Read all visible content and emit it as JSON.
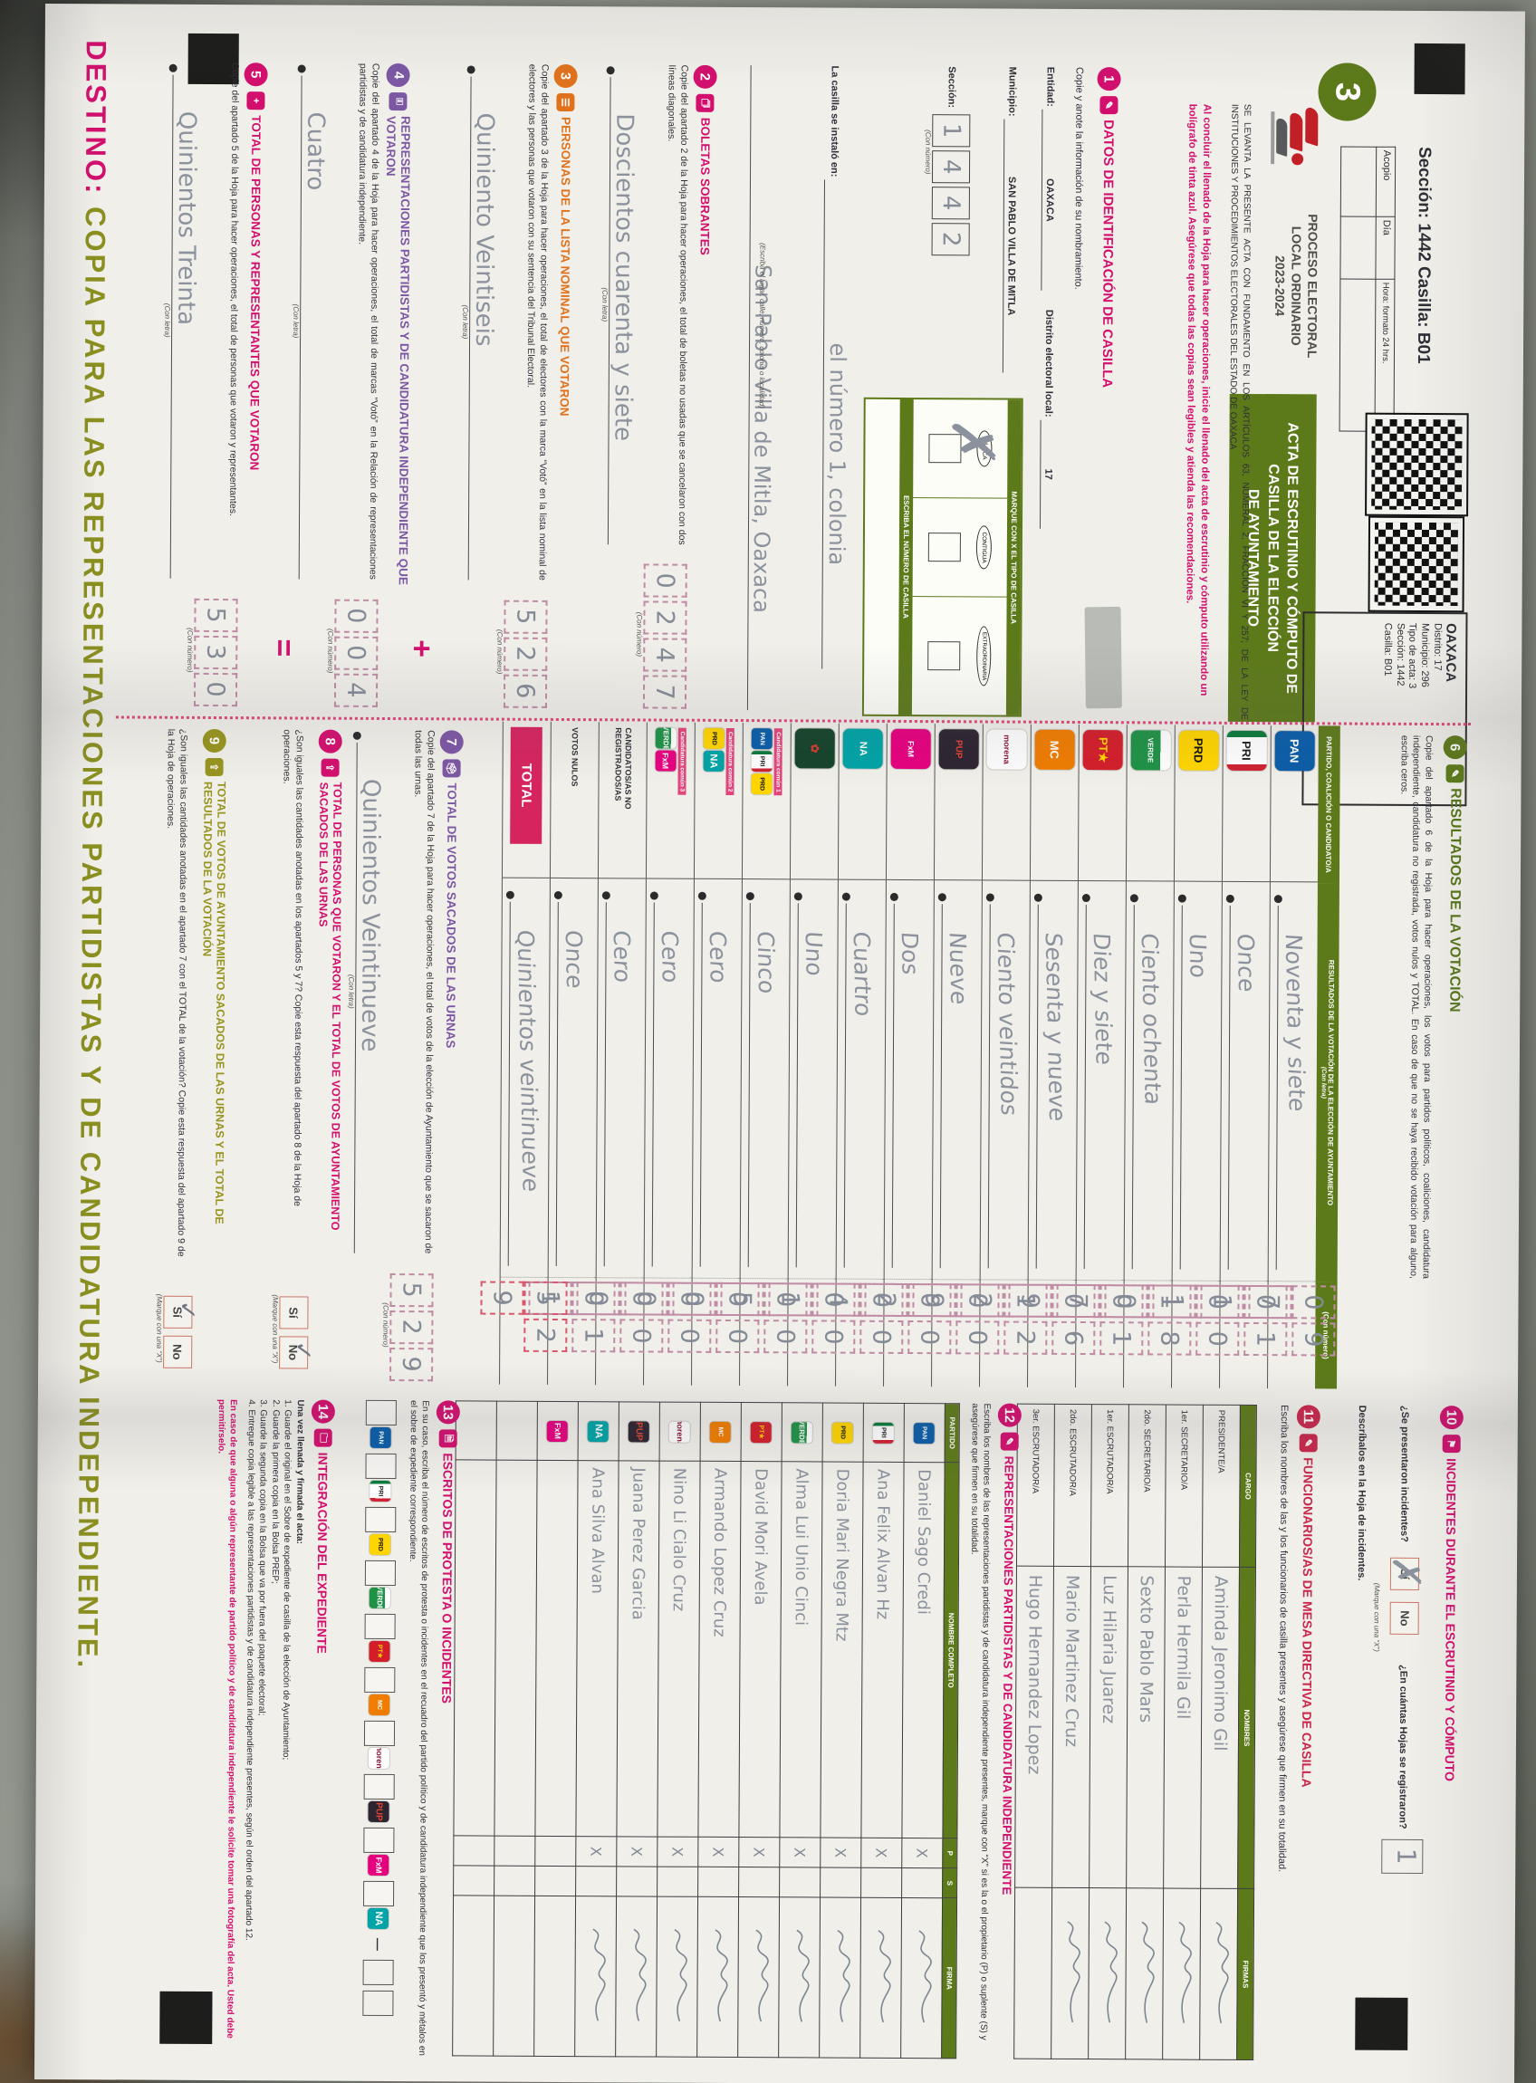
{
  "photo_background": "#8b8e86",
  "accents": {
    "green": "#5d7a1a",
    "pink": "#d30f6e",
    "violet": "#7c57a3",
    "orange": "#e0721d",
    "olive": "#97941f",
    "pencil": "#8b929d"
  },
  "top": {
    "seccion_strip": "Sección: 1442     Casilla: B01",
    "step_circle": "3",
    "acopio": {
      "cols": [
        "Acopio",
        "Día",
        "Hora: formato 24 hrs."
      ]
    },
    "proceso": [
      "PROCESO ELECTORAL",
      "LOCAL ORDINARIO",
      "2023-2024"
    ],
    "title_lines": [
      "ACTA DE ESCRUTINIO Y CÓMPUTO DE",
      "CASILLA DE LA ELECCIÓN",
      "DE AYUNTAMIENTO"
    ],
    "meta_box": {
      "estado": "OAXACA",
      "lines": [
        "Distrito: 17",
        "Municipio: 296",
        "Tipo de acta: 3",
        "Sección: 1442",
        "Casilla: B01"
      ]
    },
    "legal": "SE LEVANTA LA PRESENTE ACTA CON FUNDAMENTO EN LOS ARTÍCULOS 63, NUMERAL 2, FRACCIÓN VI Y 257; DE LA LEY DE INSTITUCIONES Y PROCEDIMIENTOS ELECTORALES DEL ESTADO DE OAXACA",
    "advice": "Al concluir el llenado de la Hoja para hacer operaciones, inicie el llenado del acta de escrutinio y cómputo utilizando un bolígrafo de tinta azul. Asegúrese que todas las copias sean legibles y atienda las recomendaciones."
  },
  "s1": {
    "title": "DATOS DE IDENTIFICACIÓN DE CASILLA",
    "sub": "Copie y anote la información de su nombramiento.",
    "entidad_label": "Entidad:",
    "entidad": "OAXACA",
    "distrito_label": "Distrito electoral local:",
    "distrito": "17",
    "municipio_label": "Municipio:",
    "municipio": "SAN PABLO VILLA DE MITLA",
    "seccion_label": "Sección:",
    "seccion_digits": [
      "1",
      "4",
      "4",
      "2"
    ],
    "con_numero": "(Con número)",
    "con_letra": "(Con letra)",
    "instalado_label": "La casilla se instaló en:",
    "instalado_hw1": "el número 1, colonia",
    "instalado_hw2": "San Pablo Villa de Mitla, Oaxaca",
    "instalado_cap": "(Escriba el lugar, calle, número, colonia o localidad)",
    "tipo_top": "MARQUE CON X EL TIPO DE CASILLA",
    "tipo_options": [
      "BÁSICA",
      "CONTIGUA",
      "EXTRAORDINARIA"
    ],
    "tipo_bottom": "ESCRIBA EL NÚMERO DE CASILLA",
    "tipo_marcada": "BÁSICA"
  },
  "s2": {
    "title": "BOLETAS SOBRANTES",
    "text": "Copie del apartado 2 de la Hoja para hacer operaciones, el total de boletas no usadas que se cancelaron con dos líneas diagonales.",
    "letra": "Doscientos cuarenta y siete",
    "digits": [
      "0",
      "2",
      "4",
      "7"
    ]
  },
  "s3": {
    "title": "PERSONAS DE LA LISTA NOMINAL QUE VOTARON",
    "text": "Copie del apartado 3 de la Hoja para hacer operaciones, el total de electores con la marca “Votó” en la lista nominal de electores y las personas que votaron con su sentencia del Tribunal Electoral.",
    "letra": "Quiniento Veintiseis",
    "digits": [
      "5",
      "2",
      "6"
    ]
  },
  "s4": {
    "title": "REPRESENTACIONES PARTIDISTAS Y DE CANDIDATURA INDEPENDIENTE QUE VOTARON",
    "text": "Copie del apartado 4 de la Hoja para hacer operaciones, el total de marcas “Votó” en la Relación de representaciones partidistas y de candidatura independiente.",
    "letra": "Cuatro",
    "digits": [
      "0",
      "0",
      "4"
    ]
  },
  "s5": {
    "title": "TOTAL DE PERSONAS Y REPRESENTANTES QUE VOTARON",
    "text": "Copie del apartado 5 de la Hoja para hacer operaciones, el total de personas que votaron y representantes.",
    "letra": "Quinientos Treinta",
    "digits": [
      "5",
      "3",
      "0"
    ]
  },
  "s6": {
    "title": "RESULTADOS DE LA VOTACIÓN",
    "text": "Copie del apartado 6 de la Hoja para hacer operaciones, los votos para partidos políticos, coaliciones, candidatura independiente, candidatura no registrada, votos nulos y TOTAL. En caso de que no se haya recibido votación para alguno, escriba ceros.",
    "col1": "PARTIDO, COALICIÓN O CANDIDATO/A",
    "col2": "RESULTADOS DE LA VOTACIÓN DE LA ELECCIÓN DE AYUNTAMIENTO",
    "col2b": "(Con letra)",
    "col3": "(Con número)"
  },
  "results": {
    "rows": [
      {
        "party": "PAN",
        "logo": "pan",
        "letra": "Noventa y siete",
        "num": [
          "0",
          "9",
          "7"
        ],
        "value": 97
      },
      {
        "party": "PRI",
        "logo": "pri",
        "letra": "Once",
        "num": [
          "0",
          "1",
          "1"
        ],
        "value": 11
      },
      {
        "party": "PRD",
        "logo": "prd",
        "letra": "Uno",
        "num": [
          "0",
          "0",
          "1"
        ],
        "value": 1
      },
      {
        "party": "PVEM",
        "logo": "pvem",
        "letra": "Ciento ochenta",
        "num": [
          "1",
          "8",
          "0"
        ],
        "value": 180
      },
      {
        "party": "PT",
        "logo": "pt",
        "letra": "Diez y siete",
        "num": [
          "0",
          "1",
          "7"
        ],
        "value": 17
      },
      {
        "party": "MC",
        "logo": "mc",
        "letra": "Sesenta y nueve",
        "num": [
          "0",
          "6",
          "9"
        ],
        "value": 69
      },
      {
        "party": "MORENA",
        "logo": "morena",
        "letra": "Ciento veintidos",
        "num": [
          "1",
          "2",
          "2"
        ],
        "value": 122
      },
      {
        "party": "PUP",
        "logo": "pup",
        "letra": "Nueve",
        "num": [
          "0",
          "0",
          "9"
        ],
        "value": 9
      },
      {
        "party": "FUERZA POR MÉXICO",
        "logo": "fxm",
        "letra": "Dos",
        "num": [
          "0",
          "0",
          "2"
        ],
        "value": 2
      },
      {
        "party": "NUEVA ALIANZA OAXACA",
        "logo": "nao",
        "letra": "Cuartro",
        "num": [
          "0",
          "0",
          "4"
        ],
        "value": 4
      },
      {
        "party": "PARTIDO LOCAL",
        "logo": "pvo",
        "letra": "Uno",
        "num": [
          "0",
          "0",
          "1"
        ],
        "value": 1
      },
      {
        "coalicion": "Candidatura común 1",
        "logos": [
          "pan",
          "pri",
          "prd"
        ],
        "letra": "Cinco",
        "num": [
          "0",
          "0",
          "5"
        ],
        "value": 5
      },
      {
        "coalicion": "Candidatura común 2",
        "logos": [
          "prd",
          "nao"
        ],
        "letra": "Cero",
        "num": [
          "0",
          "0",
          "0"
        ],
        "value": 0
      },
      {
        "coalicion": "Candidatura común 3",
        "logos": [
          "pvem",
          "fxm"
        ],
        "letra": "Cero",
        "num": [
          "0",
          "0",
          "0"
        ],
        "value": 0
      },
      {
        "label": "CANDIDATOS/AS NO REGISTRADOS/AS",
        "letra": "Cero",
        "num": [
          "0",
          "0",
          "0"
        ],
        "value": 0
      },
      {
        "label": "VOTOS NULOS",
        "letra": "Once",
        "num": [
          "0",
          "1",
          "1"
        ],
        "value": 11
      },
      {
        "total": "TOTAL",
        "letra": "Quinientos veintinueve",
        "num": [
          "5",
          "2",
          "9"
        ],
        "value": 529
      }
    ]
  },
  "s7": {
    "title": "TOTAL DE VOTOS SACADOS DE LAS URNAS",
    "text": "Copie del apartado 7 de la Hoja para hacer operaciones, el total de votos de la elección de Ayuntamiento que se sacaron de todas las urnas.",
    "letra": "Quinientos Veintinueve",
    "digits": [
      "5",
      "2",
      "9"
    ]
  },
  "s8": {
    "title": "TOTAL DE PERSONAS QUE VOTARON Y EL TOTAL DE VOTOS DE AYUNTAMIENTO SACADOS DE LAS URNAS",
    "text": "¿Son iguales las cantidades anotadas en los apartados 5 y 7? Copie esta respuesta del apartado 8 de la Hoja de operaciones.",
    "si": "Sí",
    "no": "No",
    "answer": "No",
    "marque": "(Marque con una “X”)"
  },
  "s9": {
    "title": "TOTAL DE VOTOS DE AYUNTAMIENTO SACADOS DE LAS URNAS Y EL TOTAL DE RESULTADOS DE LA VOTACIÓN",
    "text": "¿Son iguales las cantidades anotadas en el apartado 7 con el TOTAL de la votación? Copie esta respuesta del apartado 9 de la Hoja de operaciones.",
    "si": "Sí",
    "no": "No",
    "answer": "Sí",
    "marque": "(Marque con una “X”)"
  },
  "s10": {
    "title": "INCIDENTES DURANTE EL ESCRUTINIO Y CÓMPUTO",
    "q1": "¿Se presentaron incidentes?",
    "si": "Sí",
    "no": "No",
    "answer": "Sí",
    "marque": "(Marque con una “X”)",
    "q2": "¿En cuántas Hojas se registraron?",
    "hojas": "1",
    "con_numero": "(Con número)",
    "desc": "Descríbalos en la Hoja de incidentes."
  },
  "s11": {
    "title": "FUNCIONARIOS/AS DE MESA DIRECTIVA DE CASILLA",
    "sub": "Escriba los nombres de las y los funcionarios de casilla presentes y asegúrese que firmen en su totalidad.",
    "cols": [
      "CARGO",
      "NOMBRES",
      "FIRMAS"
    ],
    "rows": [
      {
        "cargo": "PRESIDENTE/A",
        "nombre": "Aminda Jeronimo Gil",
        "firma": true
      },
      {
        "cargo": "1er. SECRETARIO/A",
        "nombre": "Perla Hermila Gil",
        "firma": true
      },
      {
        "cargo": "2do. SECRETARIO/A",
        "nombre": "Sexto Pablo Mars",
        "firma": true
      },
      {
        "cargo": "1er. ESCRUTADOR/A",
        "nombre": "Luz Hilaria Juarez",
        "firma": true
      },
      {
        "cargo": "2do. ESCRUTADOR/A",
        "nombre": "Mario Martinez Cruz",
        "firma": true
      },
      {
        "cargo": "3er. ESCRUTADOR/A",
        "nombre": "Hugo Hernandez Lopez",
        "firma": false
      }
    ]
  },
  "s12": {
    "title": "REPRESENTACIONES PARTIDISTAS Y DE CANDIDATURA INDEPENDIENTE",
    "sub": "Escriba los nombres de las representaciones partidistas y de candidatura independiente presentes, marque con “X” si es la o el propietario (P) o suplente (S) y asegúrese que firmen en su totalidad.",
    "cols": [
      "PARTIDO",
      "NOMBRE COMPLETO",
      "P",
      "S",
      "FIRMA"
    ],
    "marque_cap": "Marque con “X”",
    "rows": [
      {
        "logo": "pan",
        "nombre": "Daniel Sago Credi",
        "p": "X",
        "s": "",
        "firma": true
      },
      {
        "logo": "pri",
        "nombre": "Ana Felix Alvan Hz",
        "p": "X",
        "s": "",
        "firma": true
      },
      {
        "logo": "prd",
        "nombre": "Doria Mari Negra Mtz",
        "p": "X",
        "s": "",
        "firma": true
      },
      {
        "logo": "pvem",
        "nombre": "Alma Lui Unio Cinci",
        "p": "X",
        "s": "",
        "firma": true
      },
      {
        "logo": "pt",
        "nombre": "David Mori Avela",
        "p": "X",
        "s": "",
        "firma": true
      },
      {
        "logo": "mc",
        "nombre": "Armando Lopez Cruz",
        "p": "X",
        "s": "",
        "firma": true
      },
      {
        "logo": "morena",
        "nombre": "Nino Li Cialo Cruz",
        "p": "X",
        "s": "",
        "firma": true
      },
      {
        "logo": "pup",
        "nombre": "Juana Perez Garcia",
        "p": "X",
        "s": "",
        "firma": true
      },
      {
        "logo": "nao",
        "nombre": "Ana Silva Alvan",
        "p": "X",
        "s": "",
        "firma": true
      },
      {
        "logo": "fxm",
        "nombre": "",
        "p": "",
        "s": "",
        "firma": false
      },
      {
        "logo": null,
        "nombre": "",
        "p": "",
        "s": "",
        "firma": false
      },
      {
        "logo": null,
        "nombre": "",
        "p": "",
        "s": "",
        "firma": false
      }
    ]
  },
  "s13": {
    "title": "ESCRITOS DE PROTESTA O INCIDENTES",
    "text": "En su caso, escriba el número de escritos de protesta o incidentes en el recuadro del partido político y de candidatura independiente que los presentó y métalos en el sobre de expediente correspondiente.",
    "logos": [
      "pan",
      "pri",
      "prd",
      "pvem",
      "pt",
      "mc",
      "morena",
      "pup",
      "fxm",
      "nao"
    ]
  },
  "s14": {
    "title": "INTEGRACIÓN DEL EXPEDIENTE",
    "intro": "Una vez llenada y firmada el acta:",
    "steps": [
      "1. Guarde el original en el Sobre de expediente de casilla  de la elección de Ayuntamiento;",
      "2. Guarde la primera copia en la Bolsa PREP;",
      "3. Guarde la segunda copia en la Bolsa que va por fuera del paquete electoral;",
      "4. Entregue copia legible a las representaciones partidistas y de candidatura independiente presentes, según el orden del apartado 12."
    ],
    "note": "En caso de que alguna o algún representante de partido político y de candidatura independiente le solicite tomar una fotografía del acta. Usted debe permitírselo."
  },
  "destino": {
    "label": "DESTINO:",
    "text": " COPIA PARA LAS REPRESENTACIONES PARTIDISTAS Y DE CANDIDATURA INDEPENDIENTE."
  }
}
